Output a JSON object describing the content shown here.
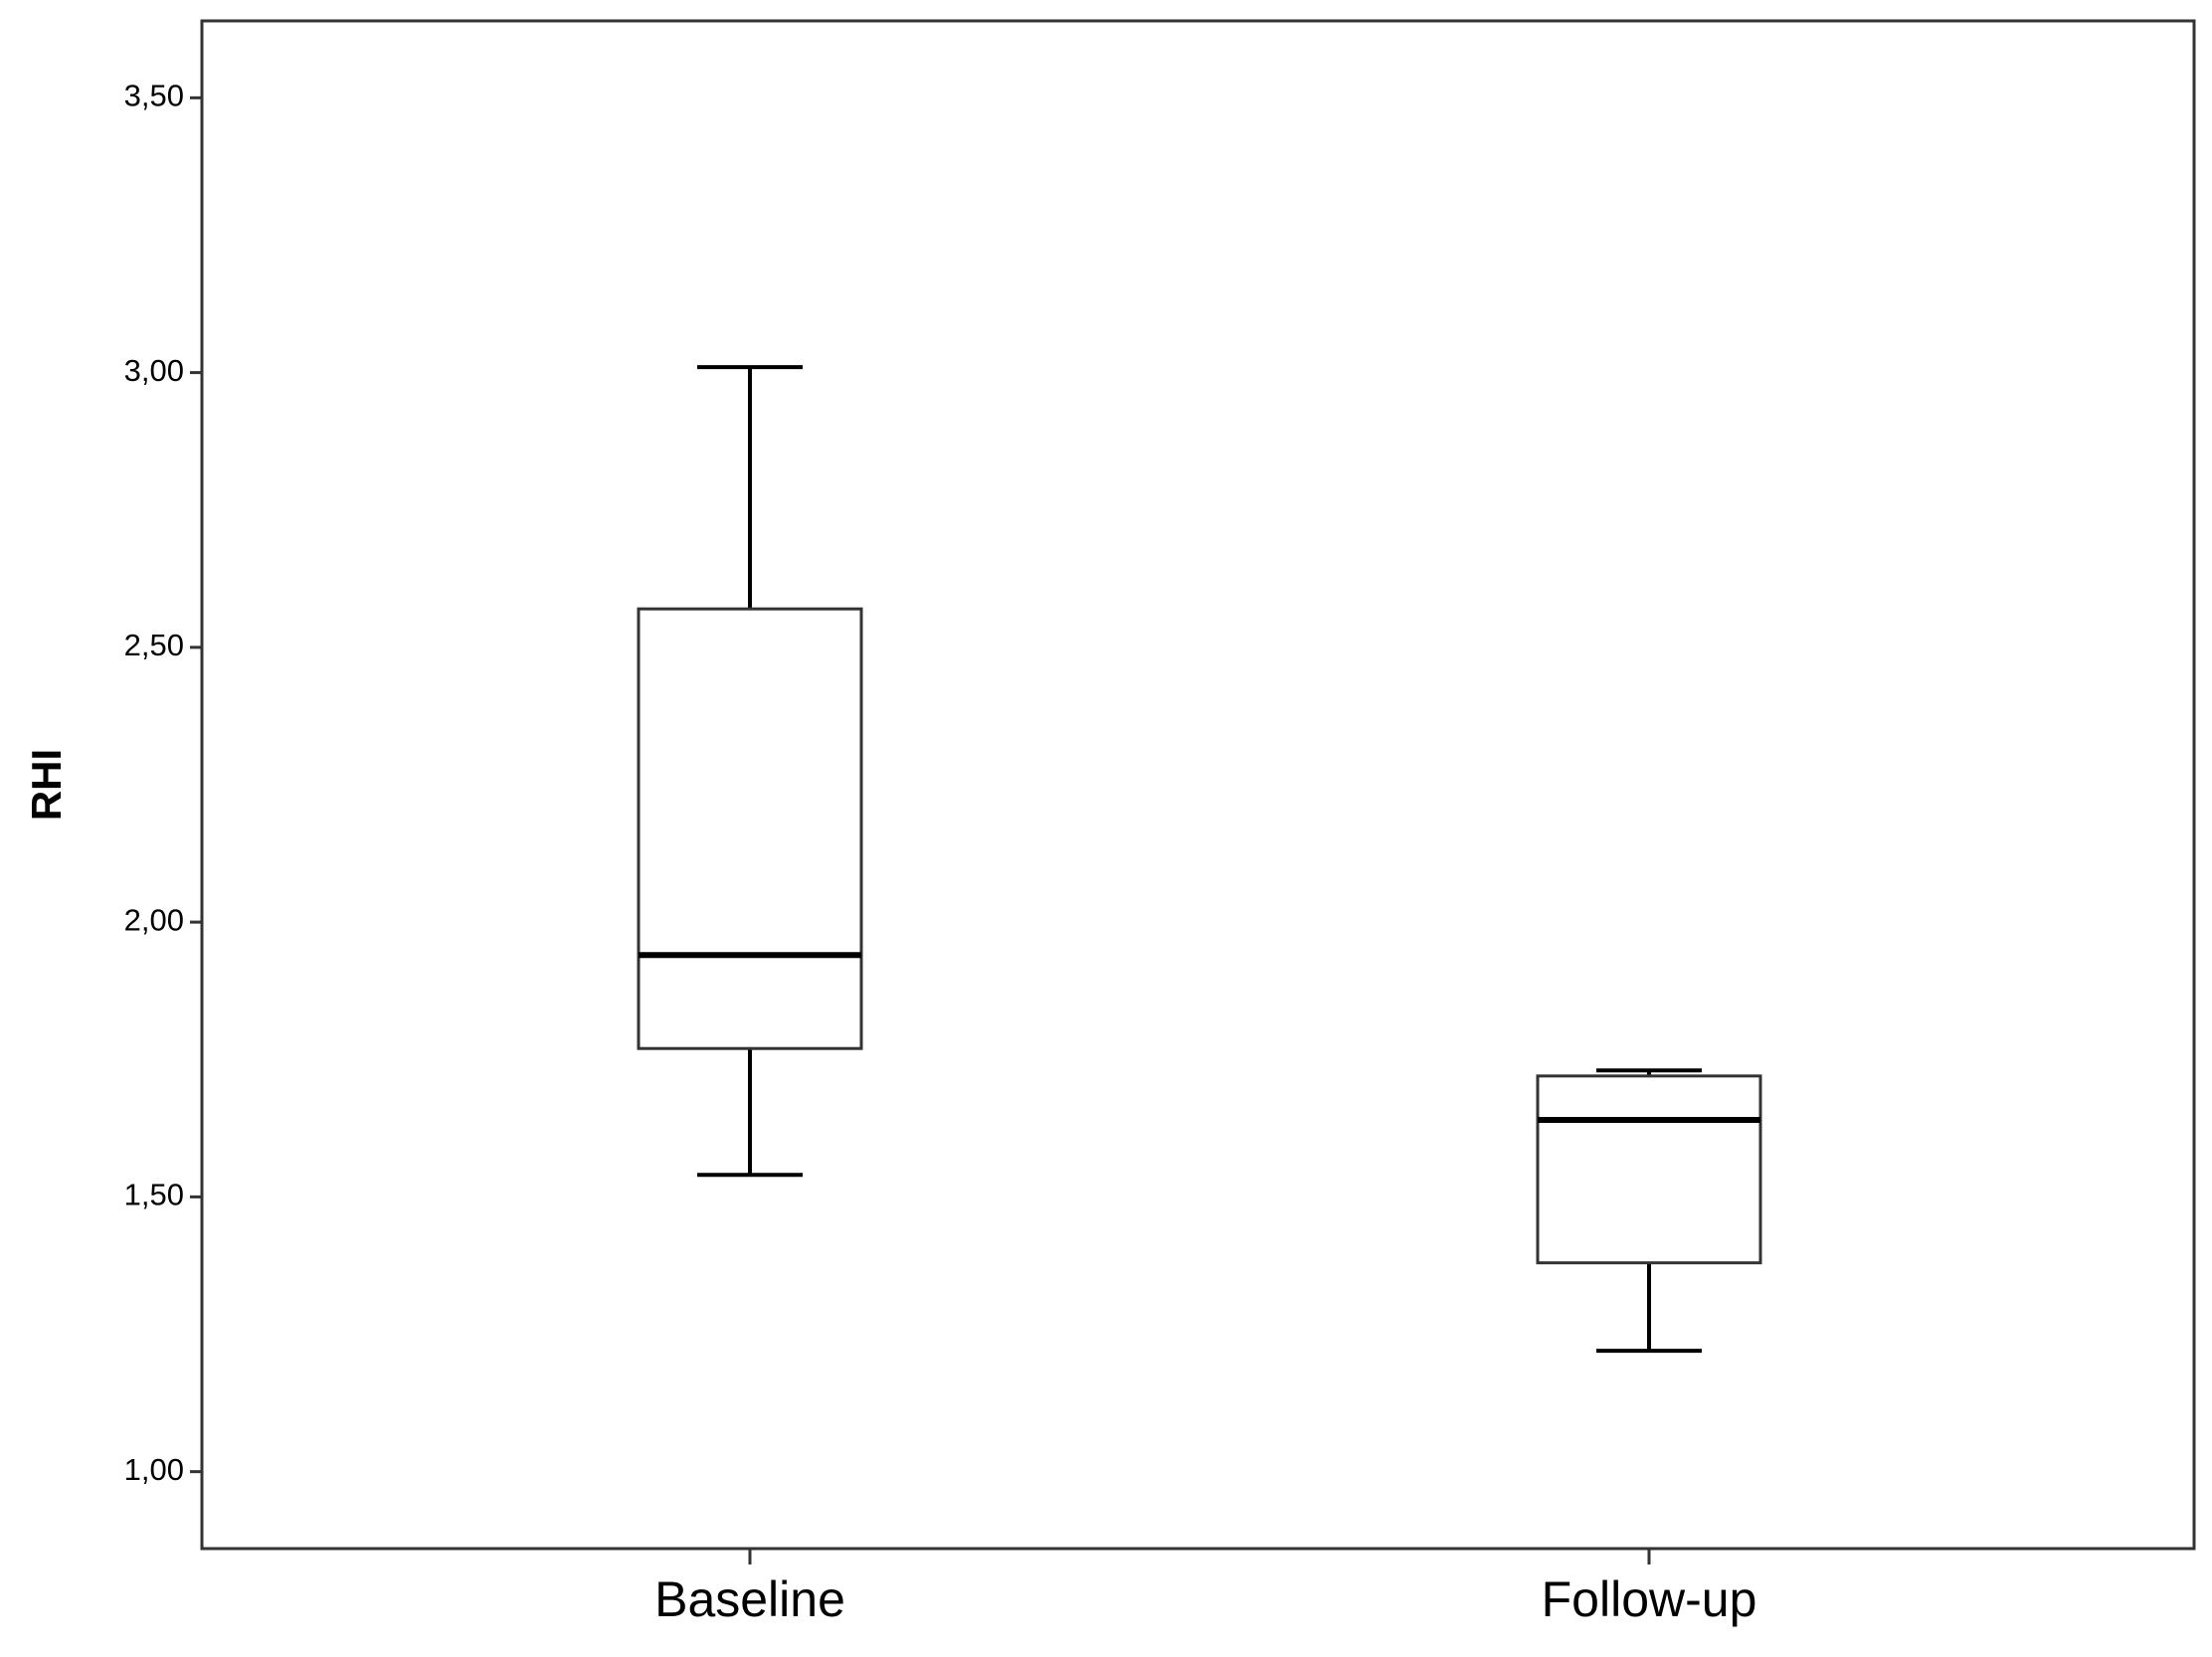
{
  "chart_data": {
    "type": "box",
    "y_label": "RHI",
    "categories": [
      "Baseline",
      "Follow-up"
    ],
    "min": [
      1.54,
      1.22
    ],
    "q1": [
      1.77,
      1.38
    ],
    "median": [
      1.94,
      1.64
    ],
    "q3": [
      2.57,
      1.72
    ],
    "max": [
      3.01,
      1.73
    ],
    "ylim": [
      0.86,
      3.64
    ],
    "yticks": [
      {
        "value": 1,
        "label": "1,00"
      },
      {
        "value": 1.5,
        "label": "1,50"
      },
      {
        "value": 2,
        "label": "2,00"
      },
      {
        "value": 2.5,
        "label": "2,50"
      },
      {
        "value": 3,
        "label": "3,00"
      },
      {
        "value": 3.5,
        "label": "3,50"
      }
    ]
  }
}
